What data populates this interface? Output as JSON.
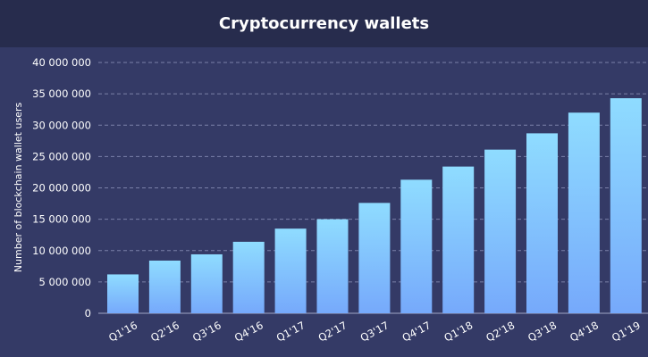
{
  "chart_data": {
    "type": "bar",
    "title": "Cryptocurrency wallets",
    "xlabel": "",
    "ylabel": "Number of blockchain wallet users",
    "ylim": [
      0,
      40000000
    ],
    "yticks": [
      "0",
      "5 000 000",
      "10 000 000",
      "15 000 000",
      "20 000 000",
      "25 000 000",
      "30 000 000",
      "35 000 000",
      "40 000 000"
    ],
    "grid": true,
    "categories": [
      "Q1'16",
      "Q2'16",
      "Q3'16",
      "Q4'16",
      "Q1'17",
      "Q2'17",
      "Q3'17",
      "Q4'17",
      "Q1'18",
      "Q2'18",
      "Q3'18",
      "Q4'18",
      "Q1'19"
    ],
    "values": [
      6200000,
      8400000,
      9400000,
      11400000,
      13500000,
      15000000,
      17600000,
      21300000,
      23400000,
      26100000,
      28700000,
      32000000,
      34300000
    ],
    "colors": {
      "bar_top": "#8fdcff",
      "bar_bottom": "#76a9fb",
      "background": "#343a66",
      "title_bar": "#272c4d"
    }
  }
}
